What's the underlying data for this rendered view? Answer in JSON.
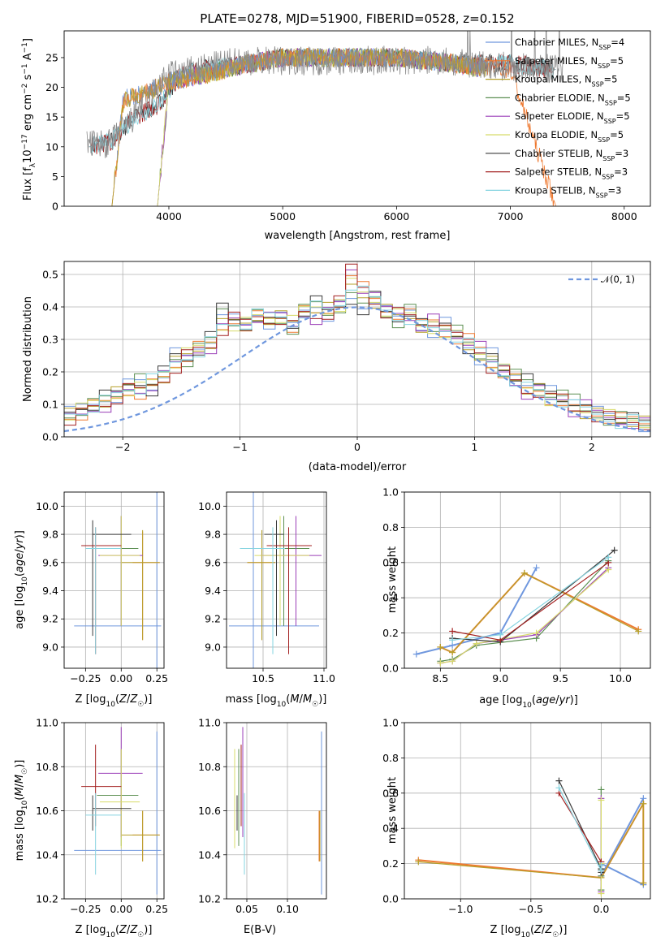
{
  "colors": [
    "#6f97de",
    "#ee7a32",
    "#b6a02a",
    "#5c8f52",
    "#9b3fb8",
    "#d8dc6a",
    "#3a3a3a",
    "#a32020",
    "#86d4e0"
  ],
  "chart_data": [
    {
      "id": "spectrum",
      "type": "line",
      "title": "PLATE=0278, MJD=51900, FIBERID=0528, z=0.152",
      "xlabel": "wavelength [Angstrom, rest frame]",
      "ylabel": "Flux [f_λ10^-17 erg cm^-2 s^-1 A^-1]",
      "xlim": [
        3080,
        8230
      ],
      "ylim": [
        0,
        29.5
      ],
      "xticks": [
        "4000",
        "5000",
        "6000",
        "7000",
        "8000"
      ],
      "yticks": [
        "0",
        "5",
        "10",
        "15",
        "20",
        "25"
      ],
      "legend": "top-right",
      "series": [
        {
          "name": "Chabrier MILES, N_SSP=4",
          "x": [
            3500,
            3600,
            3800,
            4000,
            4300,
            4700,
            5000,
            5500,
            6000,
            6500,
            6800
          ],
          "y": [
            0,
            18,
            19,
            21,
            22,
            24,
            25,
            25,
            25,
            24,
            23
          ]
        },
        {
          "name": "Salpeter MILES, N_SSP=5",
          "x": [
            3500,
            3600,
            3800,
            4000,
            4300,
            4700,
            5000,
            5500,
            6000,
            6500,
            7000,
            7400
          ],
          "y": [
            0,
            18,
            19,
            21,
            22,
            24,
            25,
            25,
            25,
            24,
            23,
            0
          ]
        },
        {
          "name": "Kroupa MILES, N_SSP=5",
          "x": [
            3500,
            3600,
            3800,
            4000,
            4300,
            4700,
            5000,
            5500,
            6000,
            6500,
            6800
          ],
          "y": [
            0,
            18,
            19,
            21,
            22,
            24,
            25,
            25,
            25,
            24,
            23
          ]
        },
        {
          "name": "Chabrier ELODIE, N_SSP=5",
          "x": [
            3900,
            4000,
            4300,
            4700,
            5000,
            5500,
            6000,
            6500,
            6800
          ],
          "y": [
            0,
            21,
            22,
            24,
            25,
            25,
            25,
            24,
            23
          ]
        },
        {
          "name": "Salpeter ELODIE, N_SSP=5",
          "x": [
            3900,
            4000,
            4300,
            4700,
            5000,
            5500,
            6000,
            6500,
            6800
          ],
          "y": [
            0,
            21,
            22,
            24,
            25,
            25,
            25,
            24,
            23
          ]
        },
        {
          "name": "Kroupa ELODIE, N_SSP=5",
          "x": [
            3900,
            4000,
            4300,
            4700,
            5000,
            5500,
            6000,
            6500,
            6800
          ],
          "y": [
            0,
            21,
            22,
            24,
            25,
            25,
            25,
            24,
            23
          ]
        },
        {
          "name": "Chabrier STELIB, N_SSP=3",
          "x": [
            3300,
            3500,
            3700,
            3900,
            4100,
            4300,
            4700,
            5000,
            5500,
            6000,
            6500,
            7000,
            7400
          ],
          "y": [
            10,
            11,
            15,
            17,
            22,
            23,
            24,
            25,
            25,
            25,
            24,
            24,
            23
          ]
        },
        {
          "name": "Salpeter STELIB, N_SSP=3",
          "x": [
            3300,
            3500,
            3700,
            3900,
            4100,
            4300,
            4700,
            5000,
            5500,
            6000,
            6500,
            7000,
            7400
          ],
          "y": [
            10,
            11,
            15,
            17,
            22,
            23,
            24,
            25,
            25,
            25,
            24,
            24,
            23
          ]
        },
        {
          "name": "Kroupa STELIB, N_SSP=3",
          "x": [
            3300,
            3500,
            3700,
            3900,
            4100,
            4300,
            4700,
            5000,
            5500,
            6000,
            6500,
            7000,
            7400
          ],
          "y": [
            10,
            11,
            15,
            17,
            22,
            23,
            24,
            25,
            25,
            25,
            24,
            24,
            23
          ]
        }
      ]
    },
    {
      "id": "residuals",
      "type": "line",
      "title": "",
      "xlabel": "(data-model)/error",
      "ylabel": "Normed distribution",
      "xlim": [
        -2.5,
        2.5
      ],
      "ylim": [
        0,
        0.54
      ],
      "xticks": [
        "−2",
        "−1",
        "0",
        "1",
        "2"
      ],
      "yticks": [
        "0.0",
        "0.1",
        "0.2",
        "0.3",
        "0.4",
        "0.5"
      ],
      "legend": "top-right",
      "legend_label": "𝒩(0, 1)",
      "bin_width": 0.1,
      "grid": true
    },
    {
      "id": "age_vs_Z",
      "type": "scatter",
      "xlabel": "Z [log₁₀(Z/Z☉)]",
      "ylabel": "age  [log₁₀(age/yr)]",
      "xlim": [
        -0.4,
        0.3
      ],
      "ylim": [
        8.85,
        10.1
      ],
      "xticks": [
        "−0.25",
        "0.00",
        "0.25"
      ],
      "yticks": [
        "9.0",
        "9.2",
        "9.4",
        "9.6",
        "9.8",
        "10.0"
      ],
      "grid": true
    },
    {
      "id": "age_vs_mass",
      "type": "scatter",
      "xlabel": "mass [log₁₀(M/M☉)]",
      "ylabel": "",
      "xlim": [
        10.2,
        11.02
      ],
      "ylim": [
        8.85,
        10.1
      ],
      "xticks": [
        "10.5",
        "11.0"
      ],
      "yticks": [
        "9.0",
        "9.2",
        "9.4",
        "9.6",
        "9.8",
        "10.0"
      ],
      "grid": true
    },
    {
      "id": "weight_vs_age",
      "type": "line",
      "xlabel": "age  [log₁₀(age/yr)]",
      "ylabel": "mass weight",
      "xlim": [
        8.2,
        10.25
      ],
      "ylim": [
        0,
        1.0
      ],
      "xticks": [
        "8.5",
        "9.0",
        "9.5",
        "10.0"
      ],
      "yticks": [
        "0.0",
        "0.2",
        "0.4",
        "0.6",
        "0.8",
        "1.0"
      ],
      "grid": true,
      "series": [
        {
          "name": "Chabrier MILES, N_SSP=4",
          "x": [
            8.3,
            8.6,
            9.0,
            9.3
          ],
          "y": [
            0.08,
            0.13,
            0.2,
            0.57
          ]
        },
        {
          "name": "Salpeter MILES, N_SSP=5",
          "x": [
            8.5,
            8.6,
            9.2,
            10.15
          ],
          "y": [
            0.12,
            0.09,
            0.54,
            0.22
          ]
        },
        {
          "name": "Kroupa MILES, N_SSP=5",
          "x": [
            8.5,
            8.6,
            9.2,
            10.15
          ],
          "y": [
            0.12,
            0.09,
            0.54,
            0.21
          ]
        },
        {
          "name": "Chabrier ELODIE, N_SSP=5",
          "x": [
            8.5,
            8.6,
            8.8,
            9.3,
            9.9
          ],
          "y": [
            0.04,
            0.05,
            0.13,
            0.17,
            0.61
          ]
        },
        {
          "name": "Salpeter ELODIE, N_SSP=5",
          "x": [
            8.5,
            8.6,
            8.8,
            9.3,
            9.9
          ],
          "y": [
            0.03,
            0.04,
            0.14,
            0.19,
            0.57
          ]
        },
        {
          "name": "Kroupa ELODIE, N_SSP=5",
          "x": [
            8.5,
            8.6,
            8.8,
            9.3,
            9.9
          ],
          "y": [
            0.03,
            0.04,
            0.14,
            0.2,
            0.56
          ]
        },
        {
          "name": "Chabrier STELIB, N_SSP=3",
          "x": [
            8.6,
            9.0,
            9.95
          ],
          "y": [
            0.17,
            0.15,
            0.67
          ]
        },
        {
          "name": "Salpeter STELIB, N_SSP=3",
          "x": [
            8.6,
            9.0,
            9.9
          ],
          "y": [
            0.21,
            0.16,
            0.6
          ]
        },
        {
          "name": "Kroupa STELIB, N_SSP=3",
          "x": [
            8.6,
            9.0,
            9.9
          ],
          "y": [
            0.16,
            0.19,
            0.63
          ]
        }
      ]
    },
    {
      "id": "mass_vs_Z",
      "type": "scatter",
      "xlabel": "Z [log₁₀(Z/Z☉)]",
      "ylabel": "mass [log₁₀(M/M☉)]",
      "xlim": [
        -0.4,
        0.3
      ],
      "ylim": [
        10.2,
        11.0
      ],
      "xticks": [
        "−0.25",
        "0.00",
        "0.25"
      ],
      "yticks": [
        "10.2",
        "10.4",
        "10.6",
        "10.8",
        "11.0"
      ],
      "grid": true
    },
    {
      "id": "mass_vs_EBV",
      "type": "scatter",
      "xlabel": "E(B-V)",
      "ylabel": "",
      "xlim": [
        0.025,
        0.148
      ],
      "ylim": [
        10.2,
        11.0
      ],
      "xticks": [
        "0.05",
        "0.10"
      ],
      "yticks": [
        "10.2",
        "10.4",
        "10.6",
        "10.8",
        "11.0"
      ],
      "grid": true
    },
    {
      "id": "weight_vs_Z",
      "type": "line",
      "xlabel": "Z [log₁₀(Z/Z☉)]",
      "ylabel": "mass weight",
      "xlim": [
        -1.4,
        0.35
      ],
      "ylim": [
        0,
        1.0
      ],
      "xticks": [
        "−1.0",
        "−0.5",
        "0.0"
      ],
      "yticks": [
        "0.0",
        "0.2",
        "0.4",
        "0.6",
        "0.8",
        "1.0"
      ],
      "grid": true,
      "series": [
        {
          "name": "Chabrier MILES, N_SSP=4",
          "x": [
            0.3,
            0.0,
            0.0,
            0.3
          ],
          "y": [
            0.08,
            0.2,
            0.13,
            0.57
          ]
        },
        {
          "name": "Salpeter MILES, N_SSP=5",
          "x": [
            -1.3,
            0.0,
            0.3,
            0.3
          ],
          "y": [
            0.22,
            0.12,
            0.54,
            0.09
          ]
        },
        {
          "name": "Kroupa MILES, N_SSP=5",
          "x": [
            -1.3,
            0.0,
            0.3,
            0.3
          ],
          "y": [
            0.21,
            0.12,
            0.54,
            0.09
          ]
        },
        {
          "name": "Chabrier ELODIE, N_SSP=5",
          "x": [
            0.0,
            0.0,
            0.0,
            0.0
          ],
          "y": [
            0.62,
            0.17,
            0.13,
            0.05
          ]
        },
        {
          "name": "Salpeter ELODIE, N_SSP=5",
          "x": [
            0.0,
            0.0,
            0.0
          ],
          "y": [
            0.57,
            0.19,
            0.04
          ]
        },
        {
          "name": "Kroupa ELODIE, N_SSP=5",
          "x": [
            0.0,
            0.0,
            0.0
          ],
          "y": [
            0.56,
            0.2,
            0.03
          ]
        },
        {
          "name": "Chabrier STELIB, N_SSP=3",
          "x": [
            -0.3,
            0.0,
            0.0
          ],
          "y": [
            0.67,
            0.17,
            0.15
          ]
        },
        {
          "name": "Salpeter STELIB, N_SSP=3",
          "x": [
            -0.3,
            0.0,
            0.0
          ],
          "y": [
            0.6,
            0.21,
            0.16
          ]
        },
        {
          "name": "Kroupa STELIB, N_SSP=3",
          "x": [
            -0.3,
            0.0,
            0.0
          ],
          "y": [
            0.63,
            0.16,
            0.19
          ]
        }
      ]
    }
  ],
  "points": [
    {
      "Z": 0.25,
      "Zerr": [
        -0.33,
        0.28
      ],
      "age": 9.15,
      "ageErr": [
        8.85,
        10.1
      ],
      "mass": 10.42,
      "massErr": [
        10.22,
        10.96
      ],
      "ebv": 0.142
    },
    {
      "Z": 0.15,
      "Zerr": [
        0.08,
        0.27
      ],
      "age": 9.6,
      "ageErr": [
        9.05,
        9.82
      ],
      "mass": 10.49,
      "massErr": [
        10.37,
        10.6
      ],
      "ebv": 0.139
    },
    {
      "Z": 0.15,
      "Zerr": [
        0.0,
        0.27
      ],
      "age": 9.6,
      "ageErr": [
        9.05,
        9.83
      ],
      "mass": 10.49,
      "massErr": [
        10.37,
        10.6
      ],
      "ebv": 0.14
    },
    {
      "Z": 0.0,
      "Zerr": [
        -0.17,
        0.12
      ],
      "age": 9.7,
      "ageErr": [
        9.15,
        9.93
      ],
      "mass": 10.67,
      "massErr": [
        10.44,
        10.88
      ],
      "ebv": 0.04
    },
    {
      "Z": 0.0,
      "Zerr": [
        -0.16,
        0.15
      ],
      "age": 9.65,
      "ageErr": [
        9.15,
        9.93
      ],
      "mass": 10.77,
      "massErr": [
        10.48,
        10.98
      ],
      "ebv": 0.045
    },
    {
      "Z": 0.0,
      "Zerr": [
        -0.15,
        0.13
      ],
      "age": 9.65,
      "ageErr": [
        9.15,
        9.93
      ],
      "mass": 10.64,
      "massErr": [
        10.43,
        10.88
      ],
      "ebv": 0.035
    },
    {
      "Z": -0.2,
      "Zerr": [
        -0.2,
        0.07
      ],
      "age": 9.8,
      "ageErr": [
        9.08,
        9.9
      ],
      "mass": 10.61,
      "massErr": [
        10.51,
        10.67
      ],
      "ebv": 0.038
    },
    {
      "Z": -0.18,
      "Zerr": [
        -0.28,
        0.0
      ],
      "age": 9.72,
      "ageErr": [
        8.95,
        9.85
      ],
      "mass": 10.71,
      "massErr": [
        10.53,
        10.9
      ],
      "ebv": 0.043
    },
    {
      "Z": -0.18,
      "Zerr": [
        -0.25,
        0.0
      ],
      "age": 9.7,
      "ageErr": [
        8.95,
        9.85
      ],
      "mass": 10.58,
      "massErr": [
        10.31,
        10.68
      ],
      "ebv": 0.047
    }
  ],
  "residual_hist": [
    [
      0.03,
      0.04,
      0.05,
      0.05,
      0.06,
      0.07,
      0.09,
      0.1,
      0.12,
      0.13,
      0.16,
      0.17,
      0.15,
      0.2,
      0.25,
      0.24,
      0.27,
      0.3,
      0.4,
      0.36,
      0.34,
      0.38,
      0.35,
      0.36,
      0.34,
      0.39,
      0.41,
      0.38,
      0.4,
      0.42,
      0.4,
      0.43,
      0.38,
      0.36,
      0.39,
      0.34,
      0.33,
      0.35,
      0.32,
      0.28,
      0.24,
      0.25,
      0.21,
      0.19,
      0.17,
      0.15,
      0.14,
      0.12,
      0.12,
      0.08,
      0.07,
      0.06,
      0.06,
      0.05,
      0.04,
      0.04,
      0.04,
      0.03,
      0.03,
      0.03
    ],
    [
      0.03,
      0.03,
      0.04,
      0.05,
      0.05,
      0.06,
      0.07,
      0.09,
      0.1,
      0.12,
      0.14,
      0.14,
      0.16,
      0.18,
      0.22,
      0.25,
      0.27,
      0.28,
      0.33,
      0.36,
      0.35,
      0.37,
      0.36,
      0.37,
      0.34,
      0.38,
      0.37,
      0.38,
      0.41,
      0.52,
      0.46,
      0.42,
      0.39,
      0.38,
      0.37,
      0.35,
      0.36,
      0.32,
      0.31,
      0.3,
      0.27,
      0.22,
      0.2,
      0.17,
      0.14,
      0.14,
      0.11,
      0.12,
      0.08,
      0.09,
      0.07,
      0.06,
      0.05,
      0.05,
      0.04,
      0.03,
      0.03,
      0.03,
      0.03,
      0.02
    ],
    [
      0.03,
      0.04,
      0.05,
      0.05,
      0.06,
      0.07,
      0.08,
      0.1,
      0.11,
      0.13,
      0.15,
      0.15,
      0.17,
      0.19,
      0.23,
      0.25,
      0.27,
      0.29,
      0.34,
      0.35,
      0.35,
      0.37,
      0.37,
      0.37,
      0.35,
      0.39,
      0.4,
      0.39,
      0.41,
      0.47,
      0.44,
      0.42,
      0.39,
      0.37,
      0.37,
      0.34,
      0.33,
      0.33,
      0.31,
      0.28,
      0.26,
      0.23,
      0.2,
      0.18,
      0.15,
      0.14,
      0.12,
      0.11,
      0.09,
      0.08,
      0.07,
      0.06,
      0.05,
      0.05,
      0.04,
      0.03,
      0.03,
      0.03,
      0.03,
      0.03
    ]
  ]
}
